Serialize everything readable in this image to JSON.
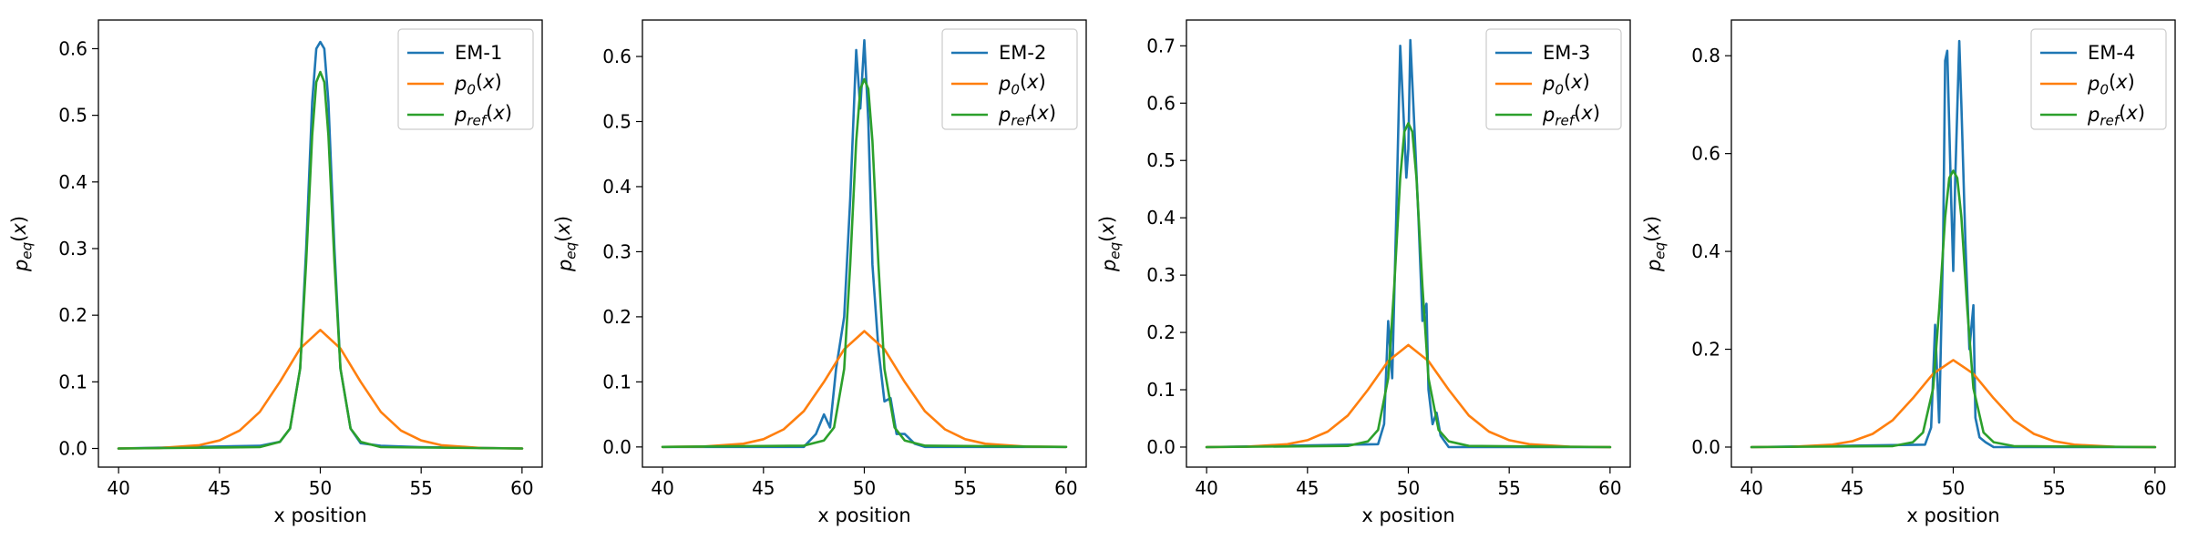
{
  "figure": {
    "colors": {
      "series1": "#1f77b4",
      "series2": "#ff7f0e",
      "series3": "#2ca02c"
    }
  },
  "chart_data": [
    {
      "type": "line",
      "xlabel": "x position",
      "ylabel": "p_eq(x)",
      "xlim": [
        39,
        61
      ],
      "ylim": [
        -0.028,
        0.643
      ],
      "xticks": [
        40,
        45,
        50,
        55,
        60
      ],
      "yticks": [
        0.0,
        0.1,
        0.2,
        0.3,
        0.4,
        0.5,
        0.6
      ],
      "legend": "top-right",
      "grid": false,
      "series": [
        {
          "name": "EM-1",
          "color": "#1f77b4",
          "x": [
            40,
            45,
            47,
            48,
            48.5,
            49,
            49.3,
            49.6,
            49.8,
            50,
            50.2,
            50.4,
            50.7,
            51,
            51.5,
            52,
            53,
            55,
            60
          ],
          "y": [
            0.0,
            0.003,
            0.004,
            0.01,
            0.03,
            0.12,
            0.3,
            0.52,
            0.6,
            0.61,
            0.6,
            0.52,
            0.3,
            0.12,
            0.03,
            0.008,
            0.004,
            0.002,
            0.0
          ]
        },
        {
          "name": "p_0(x)",
          "color": "#ff7f0e",
          "x": [
            40,
            42,
            44,
            45,
            46,
            47,
            48,
            49,
            50,
            51,
            52,
            53,
            54,
            55,
            56,
            58,
            60
          ],
          "y": [
            0.0,
            0.0006,
            0.005,
            0.012,
            0.027,
            0.055,
            0.1,
            0.15,
            0.178,
            0.15,
            0.1,
            0.055,
            0.027,
            0.012,
            0.005,
            0.0006,
            0.0
          ]
        },
        {
          "name": "p_ref(x)",
          "color": "#2ca02c",
          "x": [
            40,
            47,
            48,
            48.5,
            49,
            49.3,
            49.6,
            49.8,
            50,
            50.2,
            50.4,
            50.7,
            51,
            51.5,
            52,
            53,
            60
          ],
          "y": [
            0.0,
            0.002,
            0.01,
            0.03,
            0.12,
            0.28,
            0.47,
            0.55,
            0.565,
            0.55,
            0.47,
            0.28,
            0.12,
            0.03,
            0.01,
            0.002,
            0.0
          ]
        }
      ]
    },
    {
      "type": "line",
      "xlabel": "x position",
      "ylabel": "p_eq(x)",
      "xlim": [
        39,
        61
      ],
      "ylim": [
        -0.031,
        0.656
      ],
      "xticks": [
        40,
        45,
        50,
        55,
        60
      ],
      "yticks": [
        0.0,
        0.1,
        0.2,
        0.3,
        0.4,
        0.5,
        0.6
      ],
      "legend": "top-right",
      "grid": false,
      "series": [
        {
          "name": "EM-2",
          "color": "#1f77b4",
          "x": [
            40,
            47,
            47.6,
            48,
            48.3,
            48.6,
            49,
            49.3,
            49.6,
            49.8,
            50,
            50.2,
            50.4,
            50.7,
            51,
            51.3,
            51.6,
            52,
            52.5,
            53,
            60
          ],
          "y": [
            0.0,
            0.0,
            0.02,
            0.05,
            0.03,
            0.12,
            0.2,
            0.38,
            0.61,
            0.52,
            0.625,
            0.5,
            0.28,
            0.15,
            0.07,
            0.075,
            0.02,
            0.02,
            0.005,
            0.0,
            0.0
          ]
        },
        {
          "name": "p_0(x)",
          "color": "#ff7f0e",
          "x": [
            40,
            42,
            44,
            45,
            46,
            47,
            48,
            49,
            50,
            51,
            52,
            53,
            54,
            55,
            56,
            58,
            60
          ],
          "y": [
            0.0,
            0.0006,
            0.005,
            0.012,
            0.027,
            0.055,
            0.1,
            0.15,
            0.178,
            0.15,
            0.1,
            0.055,
            0.027,
            0.012,
            0.005,
            0.0006,
            0.0
          ]
        },
        {
          "name": "p_ref(x)",
          "color": "#2ca02c",
          "x": [
            40,
            47,
            48,
            48.5,
            49,
            49.3,
            49.6,
            49.8,
            50,
            50.2,
            50.4,
            50.7,
            51,
            51.5,
            52,
            53,
            60
          ],
          "y": [
            0.0,
            0.002,
            0.01,
            0.03,
            0.12,
            0.28,
            0.47,
            0.55,
            0.565,
            0.55,
            0.47,
            0.28,
            0.12,
            0.03,
            0.01,
            0.002,
            0.0
          ]
        }
      ]
    },
    {
      "type": "line",
      "xlabel": "x position",
      "ylabel": "p_eq(x)",
      "xlim": [
        39,
        61
      ],
      "ylim": [
        -0.035,
        0.745
      ],
      "xticks": [
        40,
        45,
        50,
        55,
        60
      ],
      "yticks": [
        0.0,
        0.1,
        0.2,
        0.3,
        0.4,
        0.5,
        0.6,
        0.7
      ],
      "legend": "top-right",
      "grid": false,
      "series": [
        {
          "name": "EM-3",
          "color": "#1f77b4",
          "x": [
            40,
            48.5,
            48.8,
            49,
            49.2,
            49.4,
            49.6,
            49.8,
            49.9,
            50,
            50.1,
            50.3,
            50.5,
            50.7,
            50.9,
            51,
            51.2,
            51.4,
            51.6,
            52,
            60
          ],
          "y": [
            0.0,
            0.005,
            0.04,
            0.22,
            0.12,
            0.4,
            0.7,
            0.55,
            0.47,
            0.52,
            0.71,
            0.56,
            0.4,
            0.22,
            0.25,
            0.1,
            0.04,
            0.06,
            0.02,
            0.0,
            0.0
          ]
        },
        {
          "name": "p_0(x)",
          "color": "#ff7f0e",
          "x": [
            40,
            42,
            44,
            45,
            46,
            47,
            48,
            49,
            50,
            51,
            52,
            53,
            54,
            55,
            56,
            58,
            60
          ],
          "y": [
            0.0,
            0.0006,
            0.005,
            0.012,
            0.027,
            0.055,
            0.1,
            0.15,
            0.178,
            0.15,
            0.1,
            0.055,
            0.027,
            0.012,
            0.005,
            0.0006,
            0.0
          ]
        },
        {
          "name": "p_ref(x)",
          "color": "#2ca02c",
          "x": [
            40,
            47,
            48,
            48.5,
            49,
            49.3,
            49.6,
            49.8,
            50,
            50.2,
            50.4,
            50.7,
            51,
            51.5,
            52,
            53,
            60
          ],
          "y": [
            0.0,
            0.002,
            0.01,
            0.03,
            0.12,
            0.28,
            0.47,
            0.55,
            0.565,
            0.55,
            0.47,
            0.28,
            0.12,
            0.03,
            0.01,
            0.002,
            0.0
          ]
        }
      ]
    },
    {
      "type": "line",
      "xlabel": "x position",
      "ylabel": "p_eq(x)",
      "xlim": [
        39,
        61
      ],
      "ylim": [
        -0.041,
        0.873
      ],
      "xticks": [
        40,
        45,
        50,
        55,
        60
      ],
      "yticks": [
        0.0,
        0.2,
        0.4,
        0.6,
        0.8
      ],
      "legend": "top-right",
      "grid": false,
      "series": [
        {
          "name": "EM-4",
          "color": "#1f77b4",
          "x": [
            40,
            48.6,
            48.9,
            49.1,
            49.3,
            49.5,
            49.6,
            49.7,
            49.9,
            50,
            50.1,
            50.3,
            50.4,
            50.6,
            50.8,
            51,
            51.1,
            51.3,
            51.6,
            52,
            60
          ],
          "y": [
            0.0,
            0.005,
            0.04,
            0.25,
            0.05,
            0.42,
            0.79,
            0.81,
            0.5,
            0.36,
            0.55,
            0.83,
            0.7,
            0.42,
            0.2,
            0.29,
            0.06,
            0.02,
            0.01,
            0.0,
            0.0
          ]
        },
        {
          "name": "p_0(x)",
          "color": "#ff7f0e",
          "x": [
            40,
            42,
            44,
            45,
            46,
            47,
            48,
            49,
            50,
            51,
            52,
            53,
            54,
            55,
            56,
            58,
            60
          ],
          "y": [
            0.0,
            0.0006,
            0.005,
            0.012,
            0.027,
            0.055,
            0.1,
            0.15,
            0.178,
            0.15,
            0.1,
            0.055,
            0.027,
            0.012,
            0.005,
            0.0006,
            0.0
          ]
        },
        {
          "name": "p_ref(x)",
          "color": "#2ca02c",
          "x": [
            40,
            47,
            48,
            48.5,
            49,
            49.3,
            49.6,
            49.8,
            50,
            50.2,
            50.4,
            50.7,
            51,
            51.5,
            52,
            53,
            60
          ],
          "y": [
            0.0,
            0.002,
            0.01,
            0.03,
            0.12,
            0.28,
            0.47,
            0.55,
            0.565,
            0.55,
            0.47,
            0.28,
            0.12,
            0.03,
            0.01,
            0.002,
            0.0
          ]
        }
      ]
    }
  ]
}
